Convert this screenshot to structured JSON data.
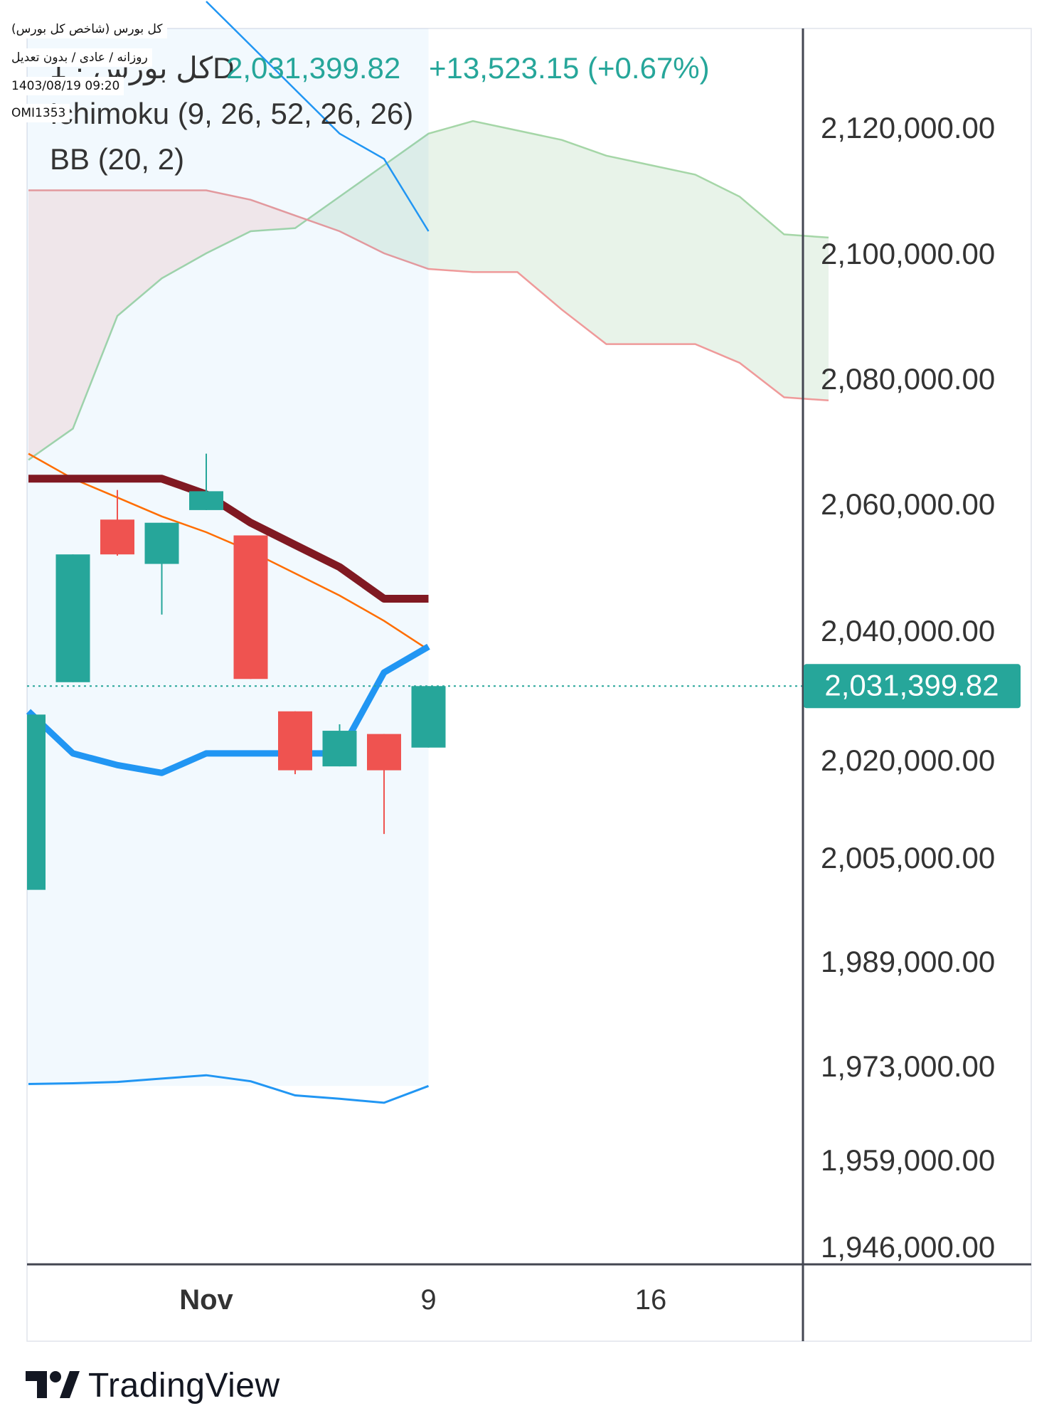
{
  "meta": {
    "title_line": "کل بورس (شاخص کل بورس)",
    "options_line": "روزانه / عادی / بدون تعدیل",
    "datetime": "1403/08/19 09:20",
    "code": "OMI1353"
  },
  "legend": {
    "symbol": "کل بورس · 1D",
    "price": "2,031,399.82",
    "change": "+13,523.15 (+0.67%)",
    "ichimoku": "Ichimoku (9, 26, 52, 26, 26)",
    "bb": "BB (20, 2)"
  },
  "last_price_label": "2,031,399.82",
  "brand": "TradingView",
  "colors": {
    "up": "#26a69a",
    "down": "#ef5350",
    "tenkan": "#2196f3",
    "kijun": "#801922",
    "bb_basis": "#ff6d00",
    "bb_band": "#2196f3",
    "span_a": "#a5d6a7",
    "span_b": "#ef9a9a"
  },
  "chart_data": {
    "type": "candlestick",
    "y_axis_labels": [
      "2,120,000.00",
      "2,100,000.00",
      "2,080,000.00",
      "2,060,000.00",
      "2,040,000.00",
      "2,020,000.00",
      "2,005,000.00",
      "1,989,000.00",
      "1,973,000.00",
      "1,959,000.00",
      "1,946,000.00"
    ],
    "y_axis_values": [
      2120000,
      2100000,
      2080000,
      2060000,
      2040000,
      2020000,
      2005000,
      1989000,
      1973000,
      1959000,
      1946000
    ],
    "x_axis_labels": [
      {
        "idx": 4,
        "text": "Nov",
        "bold": true
      },
      {
        "idx": 9,
        "text": "9",
        "bold": false
      },
      {
        "idx": 14,
        "text": "16",
        "bold": false
      }
    ],
    "last_price": 2031399.82,
    "candles": [
      {
        "idx": 0,
        "open": 2000000,
        "high": 2027000,
        "low": 2000000,
        "close": 2027000
      },
      {
        "idx": 1,
        "open": 2032000,
        "high": 2052000,
        "low": 2032000,
        "close": 2052000
      },
      {
        "idx": 2,
        "open": 2057500,
        "high": 2062200,
        "low": 2051800,
        "close": 2052000
      },
      {
        "idx": 3,
        "open": 2050500,
        "high": 2057000,
        "low": 2042500,
        "close": 2057000
      },
      {
        "idx": 4,
        "open": 2059000,
        "high": 2068000,
        "low": 2059000,
        "close": 2062000
      },
      {
        "idx": 5,
        "open": 2055000,
        "high": 2055000,
        "low": 2032500,
        "close": 2032500
      },
      {
        "idx": 6,
        "open": 2027500,
        "high": 2027500,
        "low": 2017800,
        "close": 2018400
      },
      {
        "idx": 7,
        "open": 2019000,
        "high": 2025500,
        "low": 2019000,
        "close": 2024500
      },
      {
        "idx": 8,
        "open": 2024000,
        "high": 2024000,
        "low": 2008600,
        "close": 2018400
      },
      {
        "idx": 9,
        "open": 2021900,
        "high": 2031400,
        "low": 2021900,
        "close": 2031400
      }
    ],
    "ichimoku": {
      "tenkan": [
        [
          0,
          2027500
        ],
        [
          1,
          2021000
        ],
        [
          2,
          2019200
        ],
        [
          3,
          2018000
        ],
        [
          4,
          2021000
        ],
        [
          5,
          2021000
        ],
        [
          6,
          2021000
        ],
        [
          7,
          2021000
        ],
        [
          8,
          2033500
        ],
        [
          9,
          2037500
        ]
      ],
      "kijun": [
        [
          0,
          2064000
        ],
        [
          1,
          2064000
        ],
        [
          2,
          2064000
        ],
        [
          3,
          2064000
        ],
        [
          4,
          2061500
        ],
        [
          5,
          2057000
        ],
        [
          6,
          2053500
        ],
        [
          7,
          2050000
        ],
        [
          8,
          2045000
        ],
        [
          9,
          2045000
        ]
      ],
      "span_a": [
        [
          0,
          2067000
        ],
        [
          1,
          2072000
        ],
        [
          2,
          2090000
        ],
        [
          3,
          2096000
        ],
        [
          4,
          2100000
        ],
        [
          5,
          2103500
        ],
        [
          6,
          2104000
        ],
        [
          7,
          2109000
        ],
        [
          8,
          2114000
        ],
        [
          9,
          2119000
        ],
        [
          10,
          2121000
        ],
        [
          11,
          2119500
        ],
        [
          12,
          2118000
        ],
        [
          13,
          2115500
        ],
        [
          14,
          2114000
        ],
        [
          15,
          2112500
        ],
        [
          16,
          2109000
        ],
        [
          17,
          2103000
        ],
        [
          18,
          2102500
        ]
      ],
      "span_b": [
        [
          0,
          2110000
        ],
        [
          1,
          2110000
        ],
        [
          2,
          2110000
        ],
        [
          3,
          2110000
        ],
        [
          4,
          2110000
        ],
        [
          5,
          2108500
        ],
        [
          6,
          2106000
        ],
        [
          7,
          2103500
        ],
        [
          8,
          2100000
        ],
        [
          9,
          2097500
        ],
        [
          10,
          2097000
        ],
        [
          11,
          2097000
        ],
        [
          12,
          2091000
        ],
        [
          13,
          2085500
        ],
        [
          14,
          2085500
        ],
        [
          15,
          2085500
        ],
        [
          16,
          2082500
        ],
        [
          17,
          2077000
        ],
        [
          18,
          2076500
        ]
      ]
    },
    "bollinger": {
      "basis": [
        [
          0,
          2068000
        ],
        [
          1,
          2064000
        ],
        [
          2,
          2061000
        ],
        [
          3,
          2058000
        ],
        [
          4,
          2055500
        ],
        [
          5,
          2052500
        ],
        [
          6,
          2049000
        ],
        [
          7,
          2045500
        ],
        [
          8,
          2041500
        ],
        [
          9,
          2037000
        ]
      ],
      "upper": [
        [
          4,
          2140000
        ],
        [
          5,
          2133000
        ],
        [
          6,
          2126000
        ],
        [
          7,
          2119000
        ],
        [
          8,
          2115000
        ],
        [
          9,
          2103500
        ]
      ],
      "lower": [
        [
          0,
          1970300
        ],
        [
          1,
          1970400
        ],
        [
          2,
          1970600
        ],
        [
          3,
          1971100
        ],
        [
          4,
          1971600
        ],
        [
          5,
          1970700
        ],
        [
          6,
          1968600
        ],
        [
          7,
          1968100
        ],
        [
          8,
          1967500
        ],
        [
          9,
          1970000
        ]
      ]
    }
  }
}
